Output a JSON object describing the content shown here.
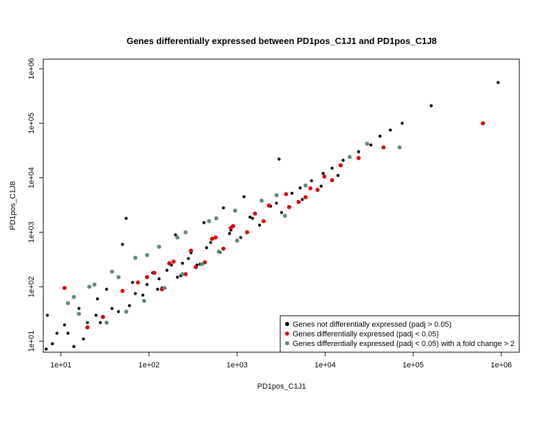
{
  "chart_data": {
    "type": "scatter",
    "title": "Genes differentially expressed between PD1pos_C1J1 and PD1pos_C1J8",
    "xlabel": "PD1pos_C1J1",
    "ylabel": "PD1pos_C1J8",
    "log_x": true,
    "log_y": true,
    "xlim": [
      6.3,
      1600000
    ],
    "ylim": [
      6.3,
      1500000
    ],
    "x_ticks": [
      {
        "value": 10,
        "label": "1e+01"
      },
      {
        "value": 100,
        "label": "1e+02"
      },
      {
        "value": 1000,
        "label": "1e+03"
      },
      {
        "value": 10000,
        "label": "1e+04"
      },
      {
        "value": 100000,
        "label": "1e+05"
      },
      {
        "value": 1000000,
        "label": "1e+06"
      }
    ],
    "y_ticks": [
      {
        "value": 10,
        "label": "1e+01"
      },
      {
        "value": 100,
        "label": "1e+02"
      },
      {
        "value": 1000,
        "label": "1e+03"
      },
      {
        "value": 10000,
        "label": "1e+04"
      },
      {
        "value": 100000,
        "label": "1e+05"
      },
      {
        "value": 1000000,
        "label": "1e+06"
      }
    ],
    "grid": false,
    "legend_position": "bottom-right",
    "series": [
      {
        "name": "Genes not differentially expressed (padj > 0.05)",
        "color": "#000000",
        "points": [
          [
            920000,
            560000
          ],
          [
            160000,
            210000
          ],
          [
            75000,
            100000
          ],
          [
            55000,
            75000
          ],
          [
            42000,
            58000
          ],
          [
            33000,
            40000
          ],
          [
            24000,
            30000
          ],
          [
            16000,
            21000
          ],
          [
            9500,
            12000
          ],
          [
            5200,
            6500
          ],
          [
            2800,
            3400
          ],
          [
            1500,
            1800
          ],
          [
            820,
            950
          ],
          [
            450,
            520
          ],
          [
            240,
            270
          ],
          [
            130,
            140
          ],
          [
            70,
            75
          ],
          [
            38,
            40
          ],
          [
            20,
            22
          ],
          [
            12,
            14
          ],
          [
            8,
            9
          ],
          [
            6.8,
            7.2
          ],
          [
            9,
            14
          ],
          [
            11,
            20
          ],
          [
            7,
            30
          ],
          [
            14,
            8
          ],
          [
            18,
            11
          ],
          [
            25,
            30
          ],
          [
            16,
            40
          ],
          [
            28,
            22
          ],
          [
            50,
            600
          ],
          [
            65,
            120
          ],
          [
            85,
            70
          ],
          [
            110,
            180
          ],
          [
            140,
            95
          ],
          [
            180,
            250
          ],
          [
            230,
            160
          ],
          [
            300,
            420
          ],
          [
            380,
            260
          ],
          [
            500,
            650
          ],
          [
            640,
            430
          ],
          [
            850,
            1100
          ],
          [
            1100,
            800
          ],
          [
            1400,
            1900
          ],
          [
            1800,
            1350
          ],
          [
            2400,
            3000
          ],
          [
            3200,
            2300
          ],
          [
            4200,
            5200
          ],
          [
            5500,
            4000
          ],
          [
            7000,
            8800
          ],
          [
            9000,
            7000
          ],
          [
            12000,
            15000
          ],
          [
            14000,
            11000
          ],
          [
            19000,
            24000
          ],
          [
            3000,
            22000
          ],
          [
            1200,
            4500
          ],
          [
            700,
            2800
          ],
          [
            420,
            1500
          ],
          [
            55,
            1800
          ],
          [
            200,
            900
          ],
          [
            33,
            90
          ],
          [
            26,
            60
          ],
          [
            45,
            35
          ],
          [
            60,
            45
          ],
          [
            95,
            110
          ],
          [
            125,
            90
          ],
          [
            160,
            200
          ],
          [
            210,
            150
          ],
          [
            280,
            330
          ],
          [
            350,
            250
          ]
        ]
      },
      {
        "name": "Genes differentially expressed (padj < 0.05)",
        "color": "#e00000",
        "points": [
          [
            620000,
            100000
          ],
          [
            46000,
            36000
          ],
          [
            24000,
            23000
          ],
          [
            15000,
            17000
          ],
          [
            9800,
            10500
          ],
          [
            6800,
            6400
          ],
          [
            3600,
            5000
          ],
          [
            2300,
            3100
          ],
          [
            1600,
            2200
          ],
          [
            900,
            1300
          ],
          [
            520,
            760
          ],
          [
            300,
            460
          ],
          [
            170,
            270
          ],
          [
            95,
            150
          ],
          [
            50,
            84
          ],
          [
            11,
            95
          ],
          [
            20,
            18
          ],
          [
            30,
            28
          ],
          [
            700,
            500
          ],
          [
            430,
            280
          ],
          [
            260,
            170
          ],
          [
            140,
            90
          ],
          [
            2000,
            1600
          ],
          [
            1300,
            1000
          ],
          [
            6000,
            4400
          ],
          [
            3900,
            2900
          ],
          [
            12000,
            9000
          ],
          [
            850,
            1200
          ],
          [
            570,
            800
          ],
          [
            190,
            290
          ],
          [
            115,
            180
          ],
          [
            75,
            120
          ],
          [
            5000,
            3600
          ],
          [
            8200,
            6000
          ],
          [
            340,
            230
          ]
        ]
      },
      {
        "name": "Genes differentially expressed (padj < 0.05) with a fold change > 2",
        "color": "#5e8c7a",
        "points": [
          [
            70000,
            36000
          ],
          [
            30000,
            42000
          ],
          [
            19000,
            24000
          ],
          [
            6000,
            7200
          ],
          [
            2800,
            4800
          ],
          [
            1900,
            3800
          ],
          [
            950,
            2500
          ],
          [
            480,
            1600
          ],
          [
            260,
            1000
          ],
          [
            130,
            540
          ],
          [
            70,
            340
          ],
          [
            38,
            190
          ],
          [
            21,
            100
          ],
          [
            14,
            65
          ],
          [
            16,
            32
          ],
          [
            12,
            50
          ],
          [
            33,
            22
          ],
          [
            55,
            35
          ],
          [
            88,
            55
          ],
          [
            150,
            95
          ],
          [
            240,
            170
          ],
          [
            400,
            260
          ],
          [
            620,
            440
          ],
          [
            1000,
            700
          ],
          [
            3500,
            2000
          ],
          [
            580,
            1800
          ],
          [
            210,
            800
          ],
          [
            95,
            380
          ],
          [
            45,
            150
          ],
          [
            24,
            110
          ]
        ]
      }
    ]
  }
}
